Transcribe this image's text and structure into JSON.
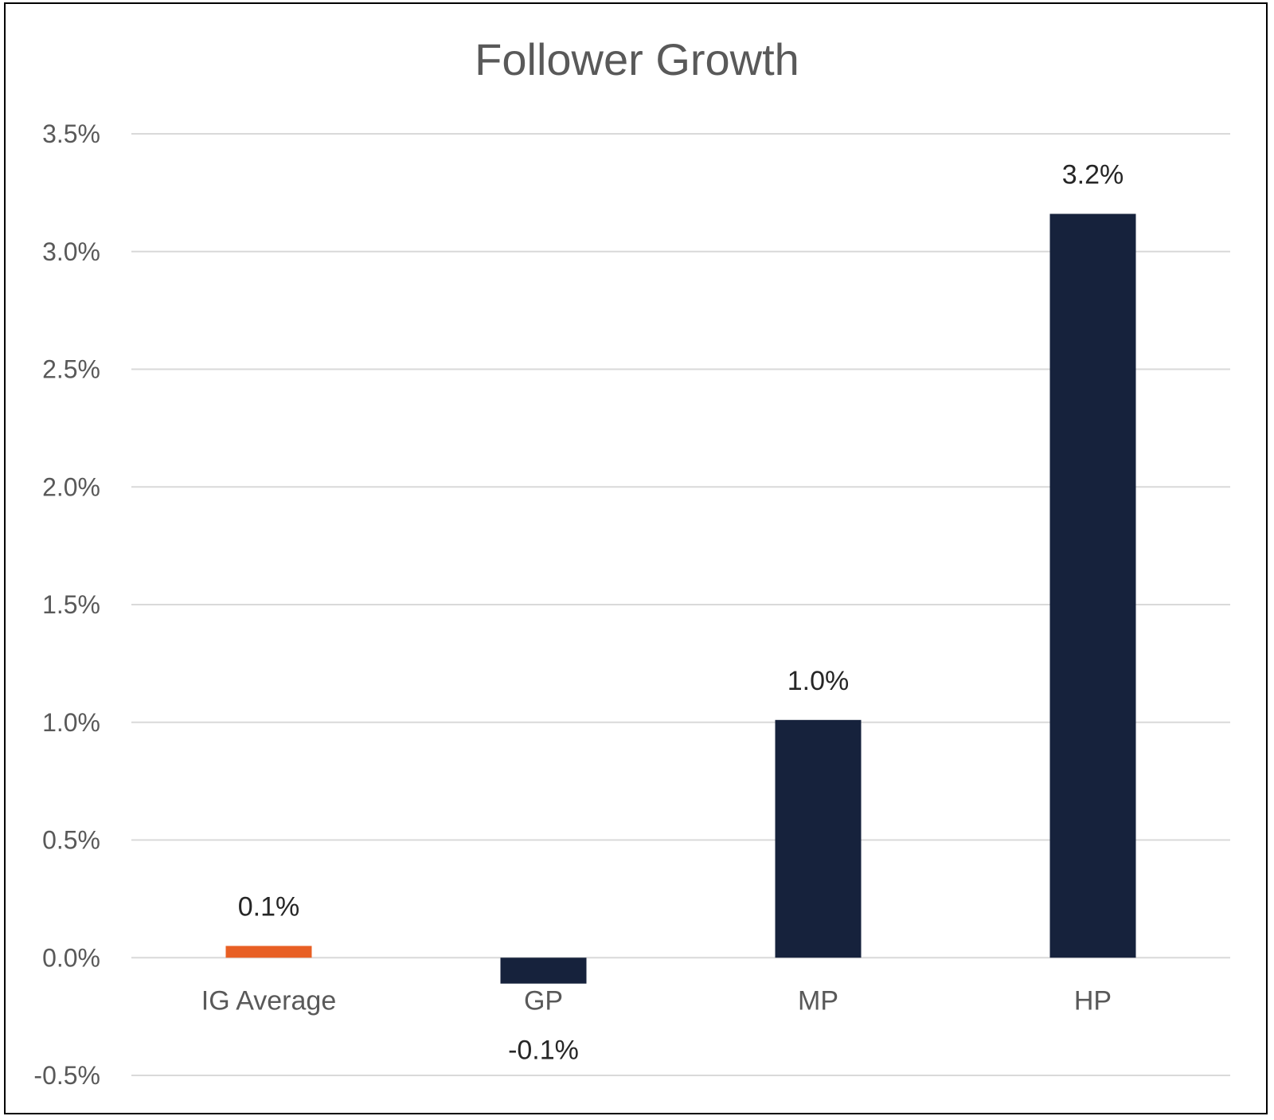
{
  "chart_data": {
    "type": "bar",
    "title": "Follower Growth",
    "categories": [
      "IG Average",
      "GP",
      "MP",
      "HP"
    ],
    "values": [
      0.05,
      -0.11,
      1.01,
      3.16
    ],
    "data_labels": [
      "0.1%",
      "-0.1%",
      "1.0%",
      "3.2%"
    ],
    "bar_colors": [
      "#E85F24",
      "#16223C",
      "#16223C",
      "#16223C"
    ],
    "y_ticks": [
      -0.5,
      0.0,
      0.5,
      1.0,
      1.5,
      2.0,
      2.5,
      3.0,
      3.5
    ],
    "y_tick_labels": [
      "-0.5%",
      "0.0%",
      "0.5%",
      "1.0%",
      "1.5%",
      "2.0%",
      "2.5%",
      "3.0%",
      "3.5%"
    ],
    "ylim": [
      -0.5,
      3.5
    ],
    "xlabel": "",
    "ylabel": "",
    "grid": true,
    "gridline_color": "#D9D9D9"
  }
}
